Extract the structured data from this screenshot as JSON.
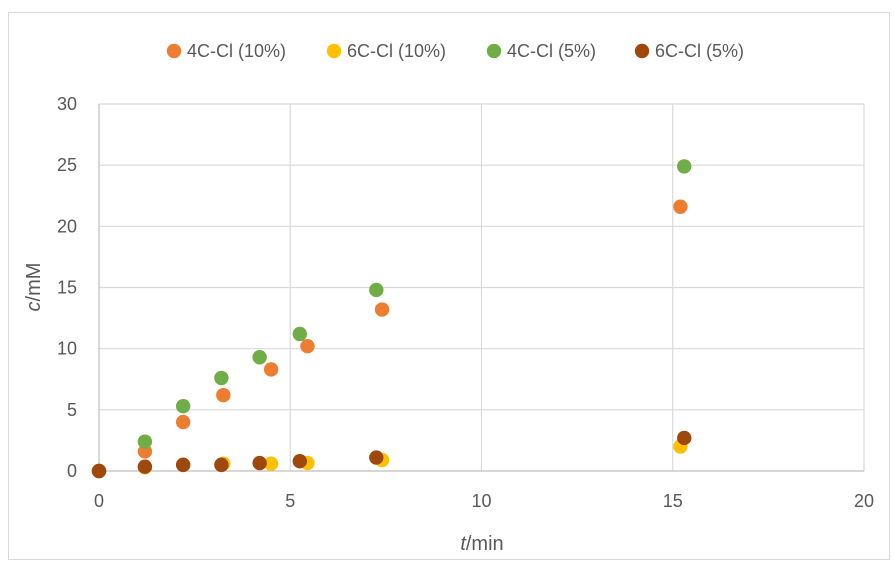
{
  "chart_data": {
    "type": "scatter",
    "title": "",
    "xlabel": "t/min",
    "xlabel_italic": "t",
    "xlabel_rest": "/min",
    "ylabel": "c/mM",
    "ylabel_italic": "c",
    "ylabel_rest": "/mM",
    "xlim": [
      0,
      20
    ],
    "ylim": [
      0,
      30
    ],
    "x_ticks": [
      0,
      5,
      10,
      15,
      20
    ],
    "y_ticks": [
      0,
      5,
      10,
      15,
      20,
      25,
      30
    ],
    "x_tick_labels": [
      "0",
      "5",
      "10",
      "15",
      "20"
    ],
    "y_tick_labels": [
      "0",
      "5",
      "10",
      "15",
      "20",
      "25",
      "30"
    ],
    "grid": true,
    "legend_position": "top",
    "series": [
      {
        "name": "4C-Cl (10%)",
        "color": "#ed7d31",
        "x": [
          0,
          1.2,
          2.2,
          3.25,
          4.5,
          5.45,
          7.4,
          15.2
        ],
        "y": [
          0,
          1.6,
          4.0,
          6.2,
          8.3,
          10.2,
          13.2,
          21.6
        ]
      },
      {
        "name": "6C-Cl (10%)",
        "color": "#ffc000",
        "x": [
          0,
          1.2,
          2.2,
          3.25,
          4.5,
          5.45,
          7.4,
          15.2
        ],
        "y": [
          0,
          0.3,
          0.5,
          0.6,
          0.6,
          0.65,
          0.9,
          2.0
        ]
      },
      {
        "name": "4C-Cl (5%)",
        "color": "#70ad47",
        "x": [
          0,
          1.2,
          2.2,
          3.2,
          4.2,
          5.25,
          7.25,
          15.3
        ],
        "y": [
          0,
          2.4,
          5.3,
          7.6,
          9.3,
          11.2,
          14.8,
          24.9
        ]
      },
      {
        "name": "6C-Cl (5%)",
        "color": "#9e480e",
        "x": [
          0,
          1.2,
          2.2,
          3.2,
          4.2,
          5.25,
          7.25,
          15.3
        ],
        "y": [
          0,
          0.35,
          0.5,
          0.5,
          0.65,
          0.8,
          1.1,
          2.7
        ]
      }
    ]
  }
}
